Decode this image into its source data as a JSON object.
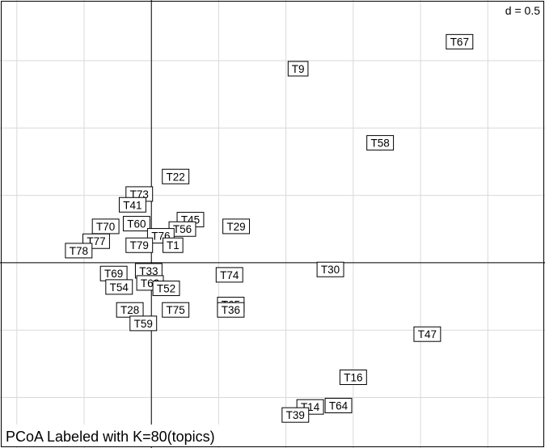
{
  "chart_data": {
    "type": "scatter",
    "title": "PCoA Labeled with K=80(topics)",
    "scale_label": "d = 0.5",
    "grid": true,
    "axis_lines_at": [
      0,
      0
    ],
    "xlim": [
      -1.125,
      2.925
    ],
    "ylim": [
      -1.375,
      1.95
    ],
    "points": [
      {
        "label": "T67",
        "x": 2.29,
        "y": 1.64
      },
      {
        "label": "T9",
        "x": 1.09,
        "y": 1.44
      },
      {
        "label": "T58",
        "x": 1.7,
        "y": 0.89
      },
      {
        "label": "T22",
        "x": 0.18,
        "y": 0.64
      },
      {
        "label": "T73",
        "x": -0.09,
        "y": 0.51
      },
      {
        "label": "T41",
        "x": -0.14,
        "y": 0.43
      },
      {
        "label": "T45",
        "x": 0.29,
        "y": 0.32
      },
      {
        "label": "T29",
        "x": 0.63,
        "y": 0.27
      },
      {
        "label": "T56",
        "x": 0.23,
        "y": 0.25
      },
      {
        "label": "T70",
        "x": -0.34,
        "y": 0.27
      },
      {
        "label": "T60",
        "x": -0.11,
        "y": 0.29
      },
      {
        "label": "T76",
        "x": 0.07,
        "y": 0.2
      },
      {
        "label": "T77",
        "x": -0.41,
        "y": 0.16
      },
      {
        "label": "T79",
        "x": -0.09,
        "y": 0.13
      },
      {
        "label": "T78",
        "x": -0.54,
        "y": 0.09
      },
      {
        "label": "T1",
        "x": 0.16,
        "y": 0.13
      },
      {
        "label": "T33",
        "x": -0.02,
        "y": -0.06
      },
      {
        "label": "T69",
        "x": -0.28,
        "y": -0.08
      },
      {
        "label": "T74",
        "x": 0.58,
        "y": -0.09
      },
      {
        "label": "T30",
        "x": 1.33,
        "y": -0.05
      },
      {
        "label": "T62",
        "x": -0.01,
        "y": -0.15
      },
      {
        "label": "T54",
        "x": -0.24,
        "y": -0.18
      },
      {
        "label": "T52",
        "x": 0.11,
        "y": -0.19
      },
      {
        "label": "T65",
        "x": 0.59,
        "y": -0.31
      },
      {
        "label": "T36",
        "x": 0.59,
        "y": -0.35
      },
      {
        "label": "T75",
        "x": 0.18,
        "y": -0.35
      },
      {
        "label": "T28",
        "x": -0.16,
        "y": -0.35
      },
      {
        "label": "T59",
        "x": -0.06,
        "y": -0.45
      },
      {
        "label": "T47",
        "x": 2.05,
        "y": -0.53
      },
      {
        "label": "T16",
        "x": 1.5,
        "y": -0.85
      },
      {
        "label": "T64",
        "x": 1.39,
        "y": -1.06
      },
      {
        "label": "T14",
        "x": 1.18,
        "y": -1.07
      },
      {
        "label": "T39",
        "x": 1.07,
        "y": -1.13
      }
    ]
  }
}
